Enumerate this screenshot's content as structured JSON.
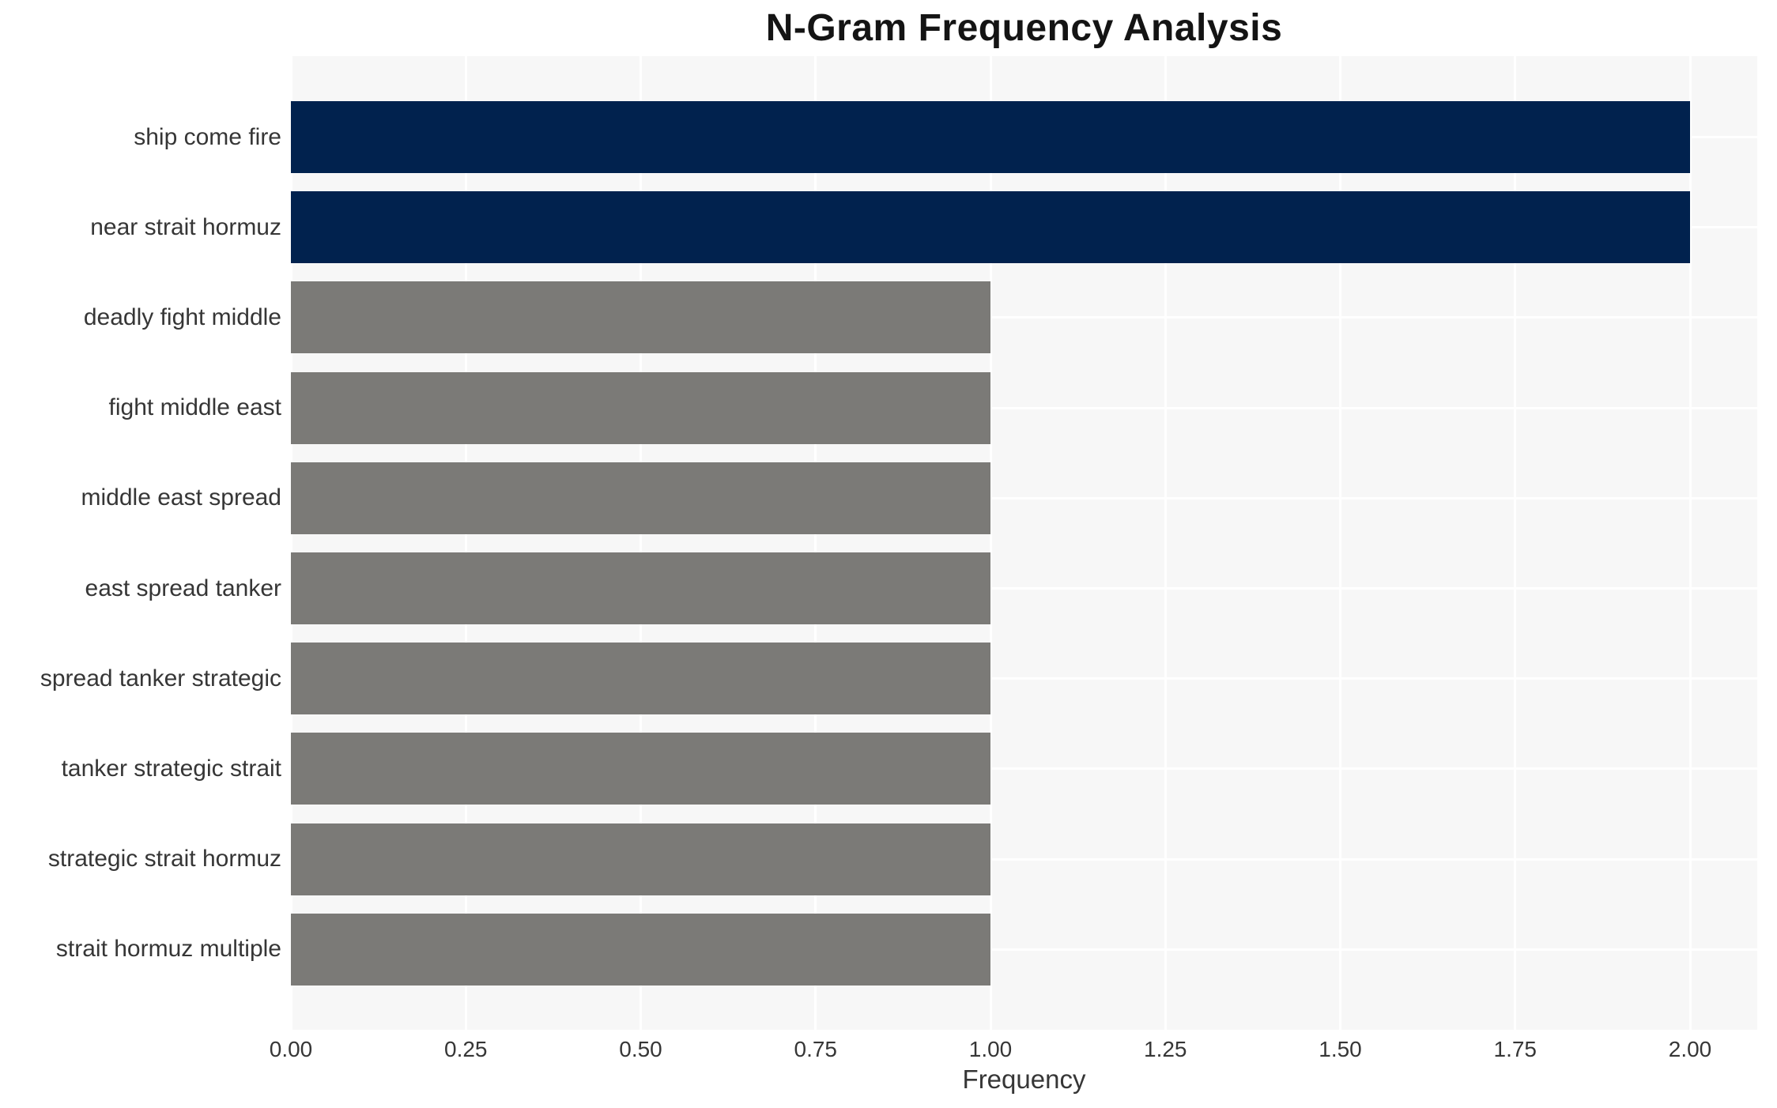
{
  "title": "N-Gram Frequency Analysis",
  "x_axis": {
    "label": "Frequency",
    "ticks": [
      "0.00",
      "0.25",
      "0.50",
      "0.75",
      "1.00",
      "1.25",
      "1.50",
      "1.75",
      "2.00"
    ]
  },
  "chart_data": {
    "type": "bar",
    "orientation": "horizontal",
    "title": "N-Gram Frequency Analysis",
    "xlabel": "Frequency",
    "ylabel": "",
    "xlim": [
      0,
      2.1
    ],
    "grid": true,
    "legend": false,
    "categories": [
      "ship come fire",
      "near strait hormuz",
      "deadly fight middle",
      "fight middle east",
      "middle east spread",
      "east spread tanker",
      "spread tanker strategic",
      "tanker strategic strait",
      "strategic strait hormuz",
      "strait hormuz multiple"
    ],
    "values": [
      2,
      2,
      1,
      1,
      1,
      1,
      1,
      1,
      1,
      1
    ],
    "bar_colors": [
      "#01224e",
      "#01224e",
      "#7b7a77",
      "#7b7a77",
      "#7b7a77",
      "#7b7a77",
      "#7b7a77",
      "#7b7a77",
      "#7b7a77",
      "#7b7a77"
    ],
    "style": {
      "highlight_color": "#01224e",
      "base_color": "#7b7a77",
      "plot_background": "#f7f7f7",
      "grid_color": "#ffffff",
      "text_color": "#363636",
      "title_color": "#141414",
      "page_background": "#ffffff"
    }
  }
}
